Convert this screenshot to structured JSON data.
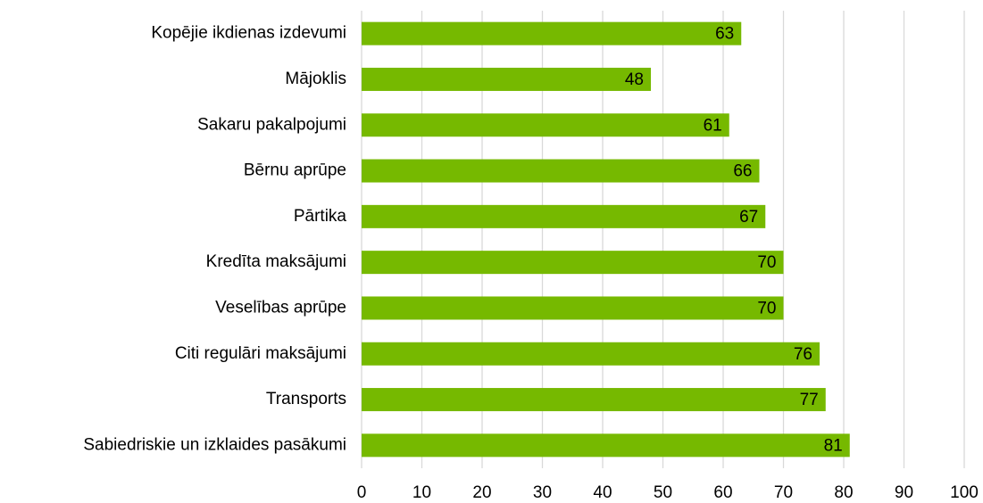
{
  "chart_data": {
    "type": "barh",
    "categories": [
      "Kopējie ikdienas izdevumi",
      "Mājoklis",
      "Sakaru pakalpojumi",
      "Bērnu aprūpe",
      "Pārtika",
      "Kredīta maksājumi",
      "Veselības aprūpe",
      "Citi regulāri maksājumi",
      "Transports",
      "Sabiedriskie un izklaides pasākumi"
    ],
    "values": [
      63,
      48,
      61,
      66,
      67,
      70,
      70,
      76,
      77,
      81
    ],
    "color": "#76b900",
    "xlim": [
      0,
      100
    ],
    "xticks": [
      0,
      10,
      20,
      30,
      40,
      50,
      60,
      70,
      80,
      90,
      100
    ],
    "grid": true
  }
}
